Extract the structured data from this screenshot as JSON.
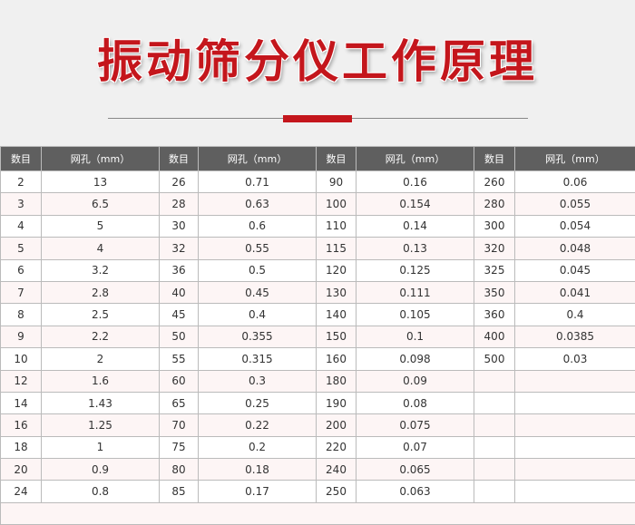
{
  "title": "振动筛分仪工作原理",
  "colors": {
    "accent": "#c4161c",
    "header_bg": "#5f5f5f",
    "alt_row": "#fdf5f5"
  },
  "table": {
    "headers": [
      "数目",
      "网孔（mm）",
      "数目",
      "网孔（mm）",
      "数目",
      "网孔（mm）",
      "数目",
      "网孔（mm）"
    ],
    "rows": [
      [
        "2",
        "13",
        "26",
        "0.71",
        "90",
        "0.16",
        "260",
        "0.06"
      ],
      [
        "3",
        "6.5",
        "28",
        "0.63",
        "100",
        "0.154",
        "280",
        "0.055"
      ],
      [
        "4",
        "5",
        "30",
        "0.6",
        "110",
        "0.14",
        "300",
        "0.054"
      ],
      [
        "5",
        "4",
        "32",
        "0.55",
        "115",
        "0.13",
        "320",
        "0.048"
      ],
      [
        "6",
        "3.2",
        "36",
        "0.5",
        "120",
        "0.125",
        "325",
        "0.045"
      ],
      [
        "7",
        "2.8",
        "40",
        "0.45",
        "130",
        "0.111",
        "350",
        "0.041"
      ],
      [
        "8",
        "2.5",
        "45",
        "0.4",
        "140",
        "0.105",
        "360",
        "0.4"
      ],
      [
        "9",
        "2.2",
        "50",
        "0.355",
        "150",
        "0.1",
        "400",
        "0.0385"
      ],
      [
        "10",
        "2",
        "55",
        "0.315",
        "160",
        "0.098",
        "500",
        "0.03"
      ],
      [
        "12",
        "1.6",
        "60",
        "0.3",
        "180",
        "0.09",
        "",
        ""
      ],
      [
        "14",
        "1.43",
        "65",
        "0.25",
        "190",
        "0.08",
        "",
        ""
      ],
      [
        "16",
        "1.25",
        "70",
        "0.22",
        "200",
        "0.075",
        "",
        ""
      ],
      [
        "18",
        "1",
        "75",
        "0.2",
        "220",
        "0.07",
        "",
        ""
      ],
      [
        "20",
        "0.9",
        "80",
        "0.18",
        "240",
        "0.065",
        "",
        ""
      ],
      [
        "24",
        "0.8",
        "85",
        "0.17",
        "250",
        "0.063",
        "",
        ""
      ]
    ]
  }
}
